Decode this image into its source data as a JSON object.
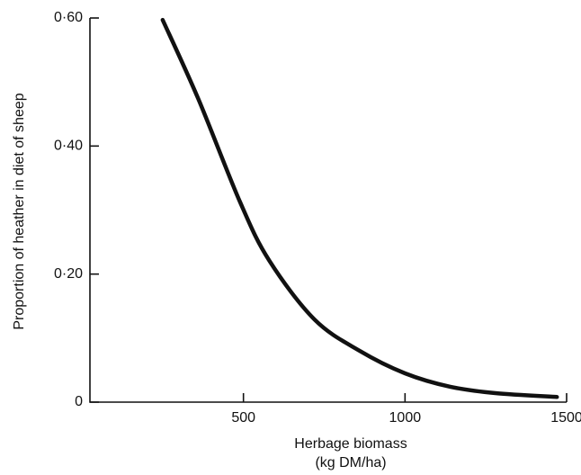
{
  "chart_data": {
    "type": "line",
    "x_label": "Herbage biomass",
    "x_label_unit": "(kg DM/ha)",
    "y_label": "Proportion of heather in diet of sheep",
    "x": [
      250,
      360,
      490,
      580,
      720,
      860,
      1000,
      1140,
      1280,
      1470
    ],
    "series": [
      {
        "color": "#111111",
        "values": [
          0.597,
          0.474,
          0.312,
          0.221,
          0.129,
          0.08,
          0.045,
          0.024,
          0.014,
          0.008
        ]
      }
    ],
    "xlim": [
      25,
      1500
    ],
    "ylim": [
      0,
      0.6
    ],
    "xticks": [
      500,
      1000,
      1500
    ],
    "yticks": [
      0,
      {
        "value": 0.2,
        "label": "0·20"
      },
      {
        "value": 0.4,
        "label": "0·40"
      },
      {
        "value": 0.6,
        "label": "0·60"
      }
    ],
    "grid": false
  }
}
